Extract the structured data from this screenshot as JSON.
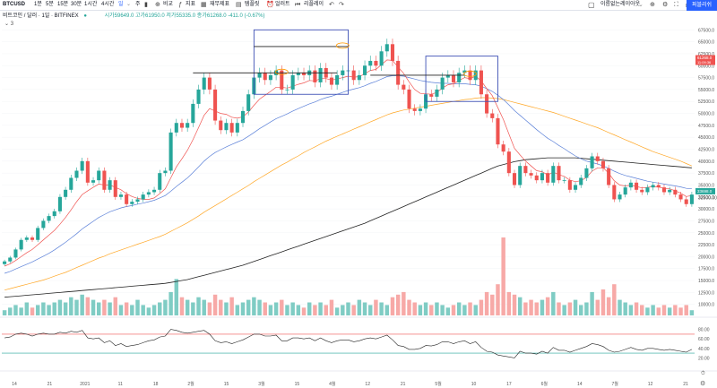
{
  "toolbar": {
    "symbol": "BTCUSD",
    "intervals": [
      "1분",
      "5분",
      "15분",
      "30분",
      "1시간",
      "4시간",
      "일",
      "주"
    ],
    "compare": "비교",
    "indicators": "지표",
    "financials": "재무제표",
    "templates": "템플릿",
    "alert": "얼러트",
    "replay": "리플레이",
    "layout_name": "이름없는레이아웃",
    "publish": "퍼블리쉬"
  },
  "legend": {
    "title": "비트코인 / 달러 · 1일 · BITFINEX",
    "ohlc": "시가59649.0 고가61950.0 저가55335.0 종가61268.0 -411.0 (-0.67%)",
    "collapsed_count": "3"
  },
  "price_axis": {
    "ticks": [
      "67500.0",
      "65000.0",
      "62500.0",
      "60000.0",
      "57500.0",
      "55000.0",
      "52500.0",
      "50000.0",
      "47500.0",
      "45000.0",
      "42500.0",
      "40000.0",
      "37500.0",
      "35000.0",
      "32500.0",
      "30000.0",
      "27500.0",
      "25000.0",
      "22500.0",
      "20000.0",
      "17500.0",
      "15000.0",
      "12500.0",
      "10000.0"
    ],
    "badge_top_price": "61268.0",
    "badge_top_time": "11:09:36",
    "badge_bottom_price": "33698.0",
    "badge_bottom_value": "32500.00"
  },
  "rsi_axis": {
    "ticks": [
      "80.00",
      "60.00",
      "40.00",
      "20.00"
    ]
  },
  "time_axis": [
    "14",
    "21",
    "2021",
    "11",
    "18",
    "2월",
    "15",
    "3월",
    "15",
    "4월",
    "12",
    "21",
    "5월",
    "10",
    "17",
    "6월",
    "14",
    "7월",
    "12",
    "21"
  ],
  "colors": {
    "up": "#26a69a",
    "down": "#ef5350",
    "up_volume": "#7fccc4",
    "down_volume": "#f7a9a7",
    "ma_fast": "#f05350",
    "ma_mid": "#5b80d8",
    "ma_slow": "#ffa726",
    "ma_long": "#222222",
    "rsi_line": "#222222",
    "rsi_band_top": "#ef5350",
    "rsi_band_bottom": "#26a69a",
    "box": "#3f51b5",
    "accent": "#2962ff"
  },
  "chart_data": {
    "type": "candlestick",
    "symbol": "BTCUSD",
    "exchange": "BITFINEX",
    "interval": "1D",
    "ylim": [
      9000,
      70000
    ],
    "closes": [
      19000,
      19800,
      21500,
      23500,
      24000,
      23500,
      26000,
      27500,
      28500,
      29500,
      32500,
      34000,
      36500,
      38000,
      40000,
      35500,
      36000,
      38000,
      34000,
      36000,
      32500,
      33000,
      31000,
      31500,
      32000,
      33000,
      33500,
      34000,
      37500,
      38000,
      46000,
      48000,
      47000,
      48000,
      52000,
      55000,
      57500,
      55000,
      48500,
      46500,
      48000,
      46000,
      48000,
      50500,
      54000,
      57500,
      58500,
      57000,
      58000,
      59000,
      55000,
      55000,
      58000,
      58500,
      58000,
      59000,
      56500,
      59500,
      57500,
      56000,
      58000,
      59000,
      59000,
      57000,
      58000,
      60000,
      61000,
      60000,
      63000,
      64500,
      61000,
      56000,
      55000,
      51000,
      50500,
      51000,
      54000,
      53500,
      55000,
      57500,
      58000,
      56500,
      58500,
      59000,
      57000,
      59000,
      54000,
      50000,
      49000,
      43500,
      42000,
      37500,
      35000,
      39000,
      37500,
      37000,
      36000,
      37500,
      35500,
      39000,
      36000,
      36000,
      34000,
      35000,
      36500,
      38500,
      41000,
      40000,
      38500,
      35000,
      32000,
      33000,
      34500,
      35500,
      34000,
      33500,
      34500,
      35000,
      34500,
      33500,
      34000,
      33000,
      32000,
      31000,
      33000
    ],
    "ma_fast": [
      18000,
      18500,
      19200,
      20000,
      20800,
      21500,
      22500,
      23500,
      24500,
      25500,
      26800,
      28200,
      29800,
      31500,
      33000,
      33800,
      34500,
      35200,
      35000,
      35000,
      34500,
      34000,
      33200,
      32600,
      32200,
      32000,
      32000,
      32300,
      33200,
      34200,
      36500,
      38800,
      40500,
      42300,
      44500,
      47000,
      49600,
      51000,
      50500,
      50000,
      49800,
      49200,
      49000,
      49300,
      50300,
      51700,
      53000,
      53800,
      54600,
      55500,
      55500,
      55300,
      55700,
      56100,
      56400,
      56900,
      56800,
      57300,
      57300,
      57000,
      57200,
      57500,
      57800,
      57600,
      57700,
      58300,
      59000,
      59200,
      60200,
      61200,
      61100,
      59700,
      58400,
      56600,
      55000,
      54200,
      54100,
      54000,
      54400,
      55300,
      56000,
      56200,
      56900,
      57500,
      57300,
      57800,
      56800,
      55200,
      53700,
      51200,
      48700,
      45700,
      42700,
      41300,
      40000,
      39000,
      38000,
      37800,
      37100,
      37700,
      37200,
      36800,
      36000,
      35700,
      35900,
      36600,
      37900,
      38600,
      38600,
      37500,
      35900,
      35000,
      34800,
      35000,
      34700,
      34400,
      34500,
      34700,
      34600,
      34300,
      34200,
      33800,
      33300,
      32600,
      32800
    ],
    "ma_mid": [
      16500,
      16900,
      17400,
      17900,
      18400,
      18900,
      19500,
      20100,
      20700,
      21400,
      22200,
      23000,
      23900,
      24800,
      25800,
      26600,
      27400,
      28200,
      28800,
      29400,
      29800,
      30200,
      30500,
      30700,
      31000,
      31200,
      31500,
      31800,
      32300,
      32800,
      33700,
      34700,
      35600,
      36500,
      37600,
      38800,
      40000,
      41000,
      41800,
      42400,
      43000,
      43500,
      44000,
      44500,
      45200,
      46000,
      46800,
      47500,
      48200,
      48900,
      49400,
      49900,
      50500,
      51000,
      51500,
      52000,
      52400,
      52900,
      53300,
      53600,
      54000,
      54400,
      54800,
      55100,
      55400,
      55800,
      56300,
      56700,
      57200,
      57700,
      57900,
      57900,
      57800,
      57500,
      57200,
      56900,
      56700,
      56500,
      56400,
      56300,
      56300,
      56200,
      56200,
      56200,
      56100,
      56000,
      55700,
      55200,
      54600,
      53800,
      52900,
      51800,
      50600,
      49600,
      48600,
      47600,
      46600,
      45700,
      44800,
      44100,
      43300,
      42600,
      41800,
      41100,
      40500,
      40000,
      39700,
      39400,
      39000,
      38500,
      37900,
      37400,
      37000,
      36700,
      36400,
      36100,
      35800,
      35600,
      35400,
      35200,
      35000,
      34800,
      34600,
      34300,
      34200
    ],
    "ma_slow": [
      13000,
      13300,
      13600,
      13900,
      14200,
      14500,
      14800,
      15100,
      15500,
      15900,
      16300,
      16700,
      17200,
      17700,
      18200,
      18700,
      19200,
      19700,
      20100,
      20600,
      21000,
      21400,
      21800,
      22200,
      22600,
      23000,
      23400,
      23800,
      24200,
      24700,
      25300,
      25900,
      26500,
      27100,
      27800,
      28500,
      29300,
      30000,
      30700,
      31400,
      32100,
      32800,
      33500,
      34200,
      34900,
      35700,
      36400,
      37100,
      37800,
      38500,
      39200,
      39800,
      40500,
      41100,
      41800,
      42400,
      43000,
      43600,
      44200,
      44700,
      45200,
      45700,
      46200,
      46700,
      47200,
      47700,
      48200,
      48700,
      49200,
      49700,
      50100,
      50400,
      50700,
      50900,
      51100,
      51300,
      51500,
      51700,
      51900,
      52100,
      52300,
      52500,
      52700,
      52900,
      53000,
      53200,
      53300,
      53300,
      53200,
      53100,
      52900,
      52600,
      52300,
      52000,
      51700,
      51400,
      51100,
      50800,
      50500,
      50200,
      49800,
      49400,
      49000,
      48600,
      48200,
      47800,
      47400,
      47000,
      46500,
      46000,
      45500,
      45000,
      44500,
      44000,
      43500,
      43000,
      42500,
      42000,
      41600,
      41200,
      40800,
      40400,
      40000,
      39500,
      39000
    ],
    "ma_long": [
      11500,
      11600,
      11700,
      11800,
      11900,
      12000,
      12100,
      12200,
      12300,
      12400,
      12500,
      12600,
      12700,
      12800,
      12900,
      13000,
      13100,
      13200,
      13300,
      13400,
      13500,
      13600,
      13700,
      13800,
      13900,
      14000,
      14100,
      14200,
      14300,
      14400,
      14600,
      14800,
      15000,
      15200,
      15500,
      15800,
      16100,
      16400,
      16700,
      17000,
      17300,
      17600,
      17900,
      18200,
      18600,
      19000,
      19400,
      19800,
      20200,
      20600,
      21000,
      21400,
      21800,
      22200,
      22600,
      23000,
      23400,
      23800,
      24200,
      24600,
      25000,
      25400,
      25800,
      26200,
      26600,
      27000,
      27500,
      28000,
      28500,
      29000,
      29500,
      30000,
      30500,
      31000,
      31500,
      32000,
      32500,
      33000,
      33500,
      34000,
      34500,
      35000,
      35500,
      36000,
      36500,
      37000,
      37500,
      38000,
      38500,
      39000,
      39300,
      39600,
      39900,
      40100,
      40300,
      40400,
      40500,
      40600,
      40700,
      40700,
      40700,
      40700,
      40700,
      40700,
      40600,
      40500,
      40400,
      40300,
      40200,
      40100,
      40000,
      39900,
      39800,
      39700,
      39600,
      39500,
      39400,
      39300,
      39200,
      39100,
      39000,
      38900,
      38800,
      38700,
      38600
    ],
    "volumes": [
      2,
      3,
      4,
      3,
      5,
      3,
      4,
      5,
      4,
      5,
      6,
      5,
      7,
      6,
      8,
      7,
      6,
      5,
      6,
      5,
      7,
      4,
      5,
      4,
      6,
      4,
      3,
      4,
      5,
      6,
      9,
      14,
      7,
      6,
      5,
      7,
      6,
      5,
      8,
      6,
      5,
      7,
      4,
      5,
      6,
      7,
      6,
      5,
      4,
      5,
      6,
      4,
      5,
      4,
      3,
      5,
      4,
      5,
      4,
      6,
      3,
      4,
      5,
      4,
      6,
      5,
      4,
      6,
      5,
      4,
      7,
      8,
      9,
      6,
      5,
      4,
      5,
      4,
      5,
      4,
      3,
      4,
      5,
      4,
      5,
      4,
      6,
      9,
      8,
      12,
      30,
      9,
      8,
      7,
      5,
      6,
      5,
      6,
      7,
      9,
      5,
      4,
      5,
      6,
      4,
      5,
      9,
      6,
      10,
      7,
      12,
      6,
      5,
      4,
      5,
      4,
      3,
      4,
      3,
      4,
      3,
      4,
      3,
      4,
      2
    ],
    "rsi": [
      62,
      64,
      70,
      72,
      70,
      66,
      70,
      72,
      70,
      70,
      74,
      72,
      76,
      74,
      78,
      62,
      60,
      62,
      52,
      56,
      46,
      50,
      44,
      46,
      48,
      52,
      56,
      58,
      64,
      66,
      80,
      78,
      74,
      72,
      74,
      76,
      78,
      70,
      56,
      52,
      54,
      50,
      54,
      58,
      64,
      70,
      70,
      66,
      66,
      68,
      56,
      56,
      62,
      62,
      60,
      62,
      56,
      62,
      56,
      52,
      56,
      58,
      58,
      54,
      56,
      60,
      62,
      60,
      64,
      68,
      58,
      46,
      44,
      38,
      38,
      40,
      46,
      45,
      48,
      54,
      54,
      50,
      54,
      56,
      50,
      54,
      42,
      34,
      32,
      26,
      24,
      22,
      20,
      34,
      30,
      30,
      28,
      34,
      30,
      42,
      36,
      36,
      32,
      36,
      40,
      44,
      50,
      48,
      44,
      36,
      32,
      34,
      38,
      42,
      38,
      36,
      40,
      40,
      38,
      36,
      38,
      36,
      34,
      32,
      38
    ],
    "rsi_range": [
      0,
      100
    ],
    "rsi_bands": [
      30,
      70
    ],
    "resistance_lines": [
      58500,
      64000,
      58000
    ],
    "boxes": [
      {
        "from_index": 45,
        "to_index": 62,
        "top": 67500,
        "bottom": 54000
      },
      {
        "from_index": 76,
        "to_index": 89,
        "top": 62000,
        "bottom": 52500
      }
    ]
  }
}
